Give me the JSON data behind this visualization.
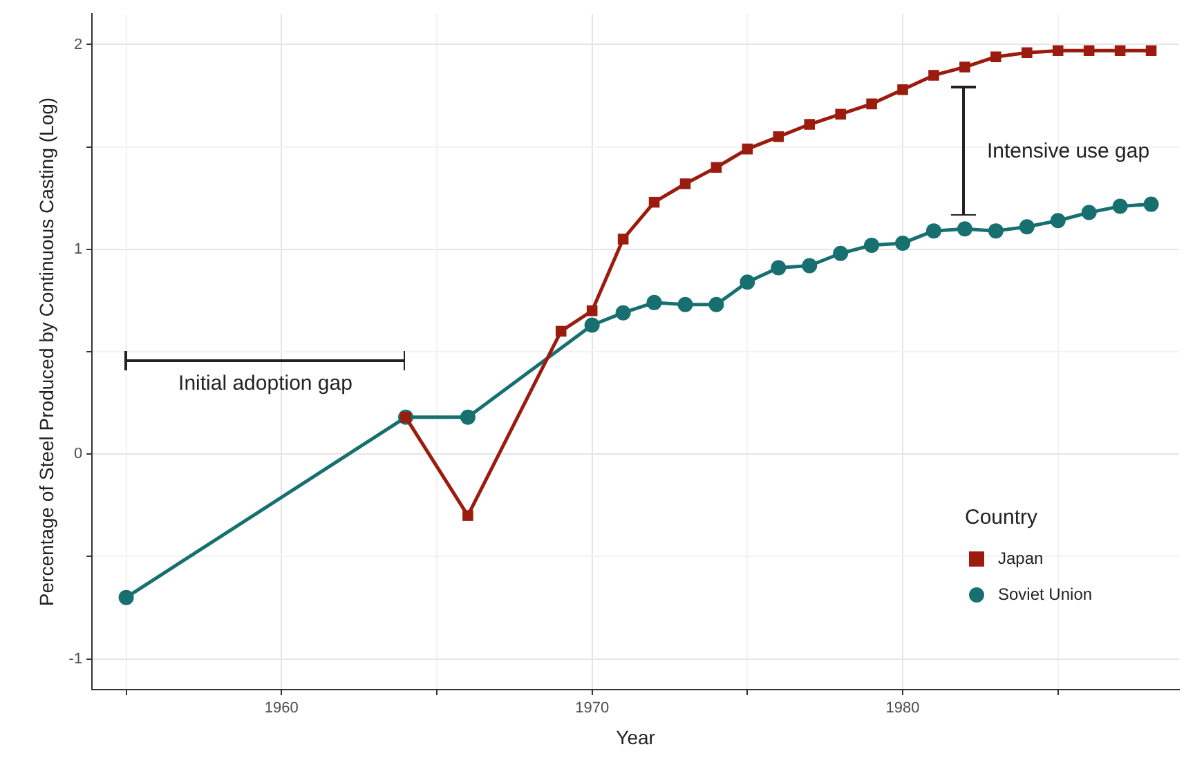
{
  "chart_data": {
    "type": "line",
    "xlabel": "Year",
    "ylabel": "Percentage of Steel Produced by Continuous Casting (Log)",
    "legend_title": "Country",
    "legend": "bottom right",
    "grid": true,
    "xlim": [
      1953.9,
      1988.9
    ],
    "xticks": [
      {
        "value": 1955,
        "label": null
      },
      1960,
      {
        "value": 1965,
        "label": null
      },
      1970,
      {
        "value": 1975,
        "label": null
      },
      1980,
      {
        "value": 1985,
        "label": null
      }
    ],
    "ylim": [
      -1.15,
      2.15
    ],
    "yticks": [
      -1,
      {
        "value": -0.5,
        "label": null
      },
      0,
      {
        "value": 0.5,
        "label": null
      },
      1,
      {
        "value": 1.5,
        "label": null
      },
      2
    ],
    "series": [
      {
        "name": "Japan",
        "color": "#9b1b0e",
        "marker": "square",
        "x": [
          1964,
          1966,
          1969,
          1970,
          1971,
          1972,
          1973,
          1974,
          1975,
          1976,
          1977,
          1978,
          1979,
          1980,
          1981,
          1982,
          1983,
          1984,
          1985,
          1986,
          1987,
          1988
        ],
        "values": [
          0.18,
          -0.3,
          0.6,
          0.7,
          1.05,
          1.23,
          1.32,
          1.4,
          1.49,
          1.55,
          1.61,
          1.66,
          1.71,
          1.78,
          1.85,
          1.89,
          1.94,
          1.96,
          1.97,
          1.97,
          1.97,
          1.97
        ]
      },
      {
        "name": "Soviet Union",
        "color": "#17706f",
        "marker": "circle",
        "x": [
          1955,
          1964,
          1966,
          1970,
          1971,
          1972,
          1973,
          1974,
          1975,
          1976,
          1977,
          1978,
          1979,
          1980,
          1981,
          1982,
          1983,
          1984,
          1985,
          1986,
          1987,
          1988
        ],
        "values": [
          -0.7,
          0.18,
          0.18,
          0.63,
          0.69,
          0.74,
          0.73,
          0.73,
          0.84,
          0.91,
          0.92,
          0.98,
          1.02,
          1.03,
          1.09,
          1.1,
          1.09,
          1.11,
          1.14,
          1.18,
          1.21,
          1.22
        ]
      }
    ],
    "annotations": [
      "Initial adoption gap",
      "Intensive use gap"
    ]
  }
}
